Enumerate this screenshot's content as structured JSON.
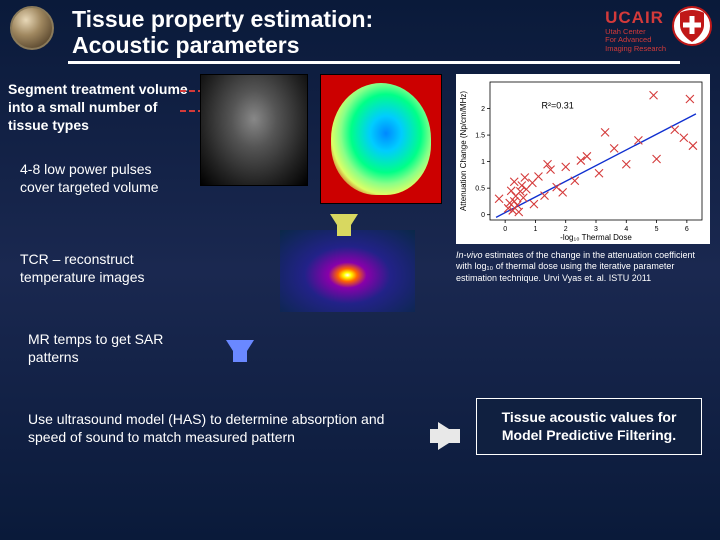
{
  "header": {
    "title_line1": "Tissue property estimation:",
    "title_line2": "Acoustic parameters",
    "ucair": "UCAIR",
    "ucair_sub1": "Utah Center",
    "ucair_sub2": "For Advanced",
    "ucair_sub3": "Imaging Research"
  },
  "steps": {
    "s1": "Segment treatment volume into a small number of tissue types",
    "s2": "4-8 low power pulses cover targeted volume",
    "s3": "TCR – reconstruct temperature images",
    "s4": "MR temps to get SAR patterns",
    "s5": "Use ultrasound model (HAS) to determine absorption and speed of sound to match measured pattern"
  },
  "chart": {
    "type": "scatter",
    "xlabel": "-log₁₀ Thermal Dose",
    "ylabel": "Attenuation Change (Np/cm/MHz)",
    "xlim": [
      -0.5,
      6.5
    ],
    "ylim": [
      -0.1,
      2.5
    ],
    "xticks": [
      0,
      1,
      2,
      3,
      4,
      5,
      6
    ],
    "yticks": [
      0,
      0.5,
      1.0,
      1.5,
      2.0
    ],
    "r2_label": "R²=0.31",
    "r2_pos": [
      1.2,
      2.0
    ],
    "fit_line": {
      "x0": -0.3,
      "y0": -0.05,
      "x1": 6.3,
      "y1": 1.9,
      "color": "#1030d0"
    },
    "points": {
      "x": [
        -0.2,
        0.1,
        0.15,
        0.2,
        0.25,
        0.3,
        0.3,
        0.35,
        0.4,
        0.5,
        0.55,
        0.6,
        0.7,
        0.9,
        1.1,
        1.3,
        1.5,
        1.7,
        2.0,
        2.3,
        2.7,
        3.1,
        3.6,
        4.0,
        4.4,
        4.9,
        5.6,
        5.9,
        6.1,
        6.2,
        5.0,
        3.3,
        2.5,
        1.9,
        1.4,
        0.95,
        0.65,
        0.45
      ],
      "y": [
        0.3,
        0.12,
        0.22,
        0.45,
        0.08,
        0.62,
        0.25,
        0.35,
        0.18,
        0.44,
        0.55,
        0.32,
        0.48,
        0.6,
        0.72,
        0.36,
        0.85,
        0.52,
        0.9,
        0.64,
        1.1,
        0.78,
        1.25,
        0.95,
        1.4,
        2.25,
        1.6,
        1.45,
        2.18,
        1.3,
        1.05,
        1.55,
        1.02,
        0.42,
        0.95,
        0.2,
        0.7,
        0.05
      ],
      "color": "#d43a3a",
      "marker": "x",
      "size": 4
    },
    "background_color": "#ffffff",
    "axis_color": "#000000",
    "font_size_ticks": 7,
    "font_size_label": 8
  },
  "caption": {
    "prefix": "In-vivo",
    "rest": " estimates of the change in the attenuation coefficient with log₁₀ of thermal dose using the iterative parameter estimation technique. Urvi Vyas et. al. ISTU 2011"
  },
  "result": "Tissue acoustic values for Model Predictive Filtering.",
  "colors": {
    "accent_red": "#d43a3a",
    "arrow_white": "#e8e8e8",
    "arrow_blue": "#6a88ff",
    "arrow_yellow": "#d8d860",
    "bg_top": "#0a1a3a"
  }
}
